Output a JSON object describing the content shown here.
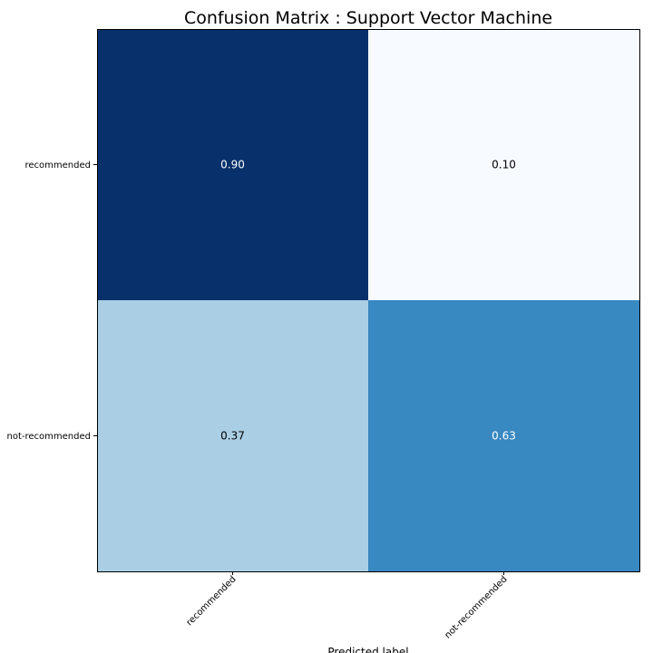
{
  "chart_data": {
    "type": "heatmap",
    "title": "Confusion Matrix : Support Vector Machine",
    "xlabel": "Predicted label",
    "ylabel": "",
    "x_categories": [
      "recommended",
      "not-recommended"
    ],
    "y_categories": [
      "recommended",
      "not-recommended"
    ],
    "values": [
      [
        0.9,
        0.1
      ],
      [
        0.37,
        0.63
      ]
    ],
    "value_labels": [
      [
        "0.90",
        "0.10"
      ],
      [
        "0.37",
        "0.63"
      ]
    ],
    "colormap": "Blues",
    "value_range": [
      0.1,
      0.9
    ],
    "grid": false,
    "legend": "none"
  }
}
